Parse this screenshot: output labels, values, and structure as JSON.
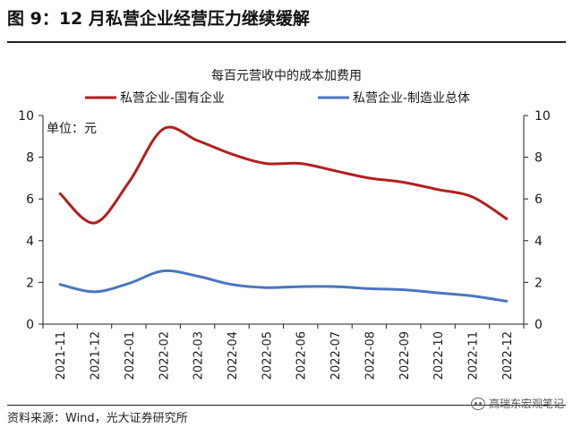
{
  "figure_title": "图 9：12 月私营企业经营压力继续缓解",
  "source": "资料来源：Wind，光大证券研究所",
  "watermark": "高瑞东宏观笔记",
  "colors": {
    "series1": "#b41e1e",
    "series2": "#4a76c0",
    "axis": "#222222"
  },
  "chart_data": {
    "type": "line",
    "title": "每百元营收中的成本加费用",
    "unit_label": "单位：元",
    "x": [
      "2021-11",
      "2021-12",
      "2022-01",
      "2022-02",
      "2022-03",
      "2022-04",
      "2022-05",
      "2022-06",
      "2022-07",
      "2022-08",
      "2022-09",
      "2022-10",
      "2022-11",
      "2022-12"
    ],
    "ylim": [
      0,
      10
    ],
    "yticks": [
      0,
      2,
      4,
      6,
      8,
      10
    ],
    "y2lim": [
      0,
      10
    ],
    "y2ticks": [
      0,
      2,
      4,
      6,
      8,
      10
    ],
    "legend_position": "top",
    "series": [
      {
        "name": "私营企业-国有企业",
        "color": "#b41e1e",
        "values": [
          6.25,
          4.85,
          6.8,
          9.35,
          8.8,
          8.15,
          7.7,
          7.7,
          7.35,
          7.0,
          6.8,
          6.45,
          6.1,
          5.05
        ]
      },
      {
        "name": "私营企业-制造业总体",
        "color": "#4a76c0",
        "values": [
          1.9,
          1.55,
          1.95,
          2.55,
          2.3,
          1.9,
          1.75,
          1.8,
          1.8,
          1.7,
          1.65,
          1.5,
          1.35,
          1.1
        ]
      }
    ]
  }
}
